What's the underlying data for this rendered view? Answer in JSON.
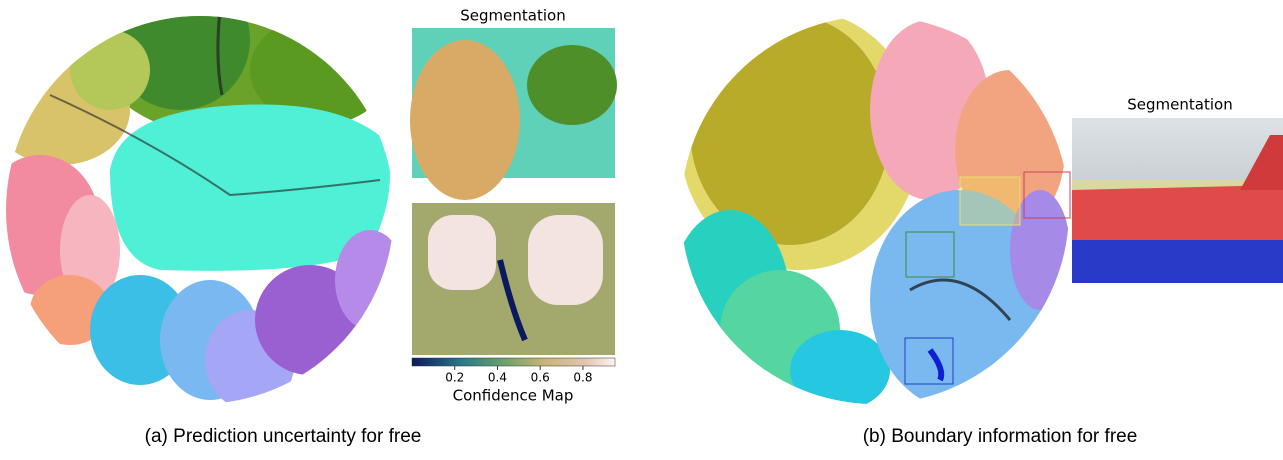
{
  "panels": [
    {
      "caption": "(a) Prediction uncertainty for free",
      "segmentation_title": "Segmentation",
      "confidence_map": {
        "title": "Confidence Map",
        "lim": [
          0,
          0.95
        ],
        "ticks": [
          0.2,
          0.4,
          0.6,
          0.8
        ]
      }
    },
    {
      "caption": "(b) Boundary information for free",
      "segmentation_title": "Segmentation"
    }
  ]
}
